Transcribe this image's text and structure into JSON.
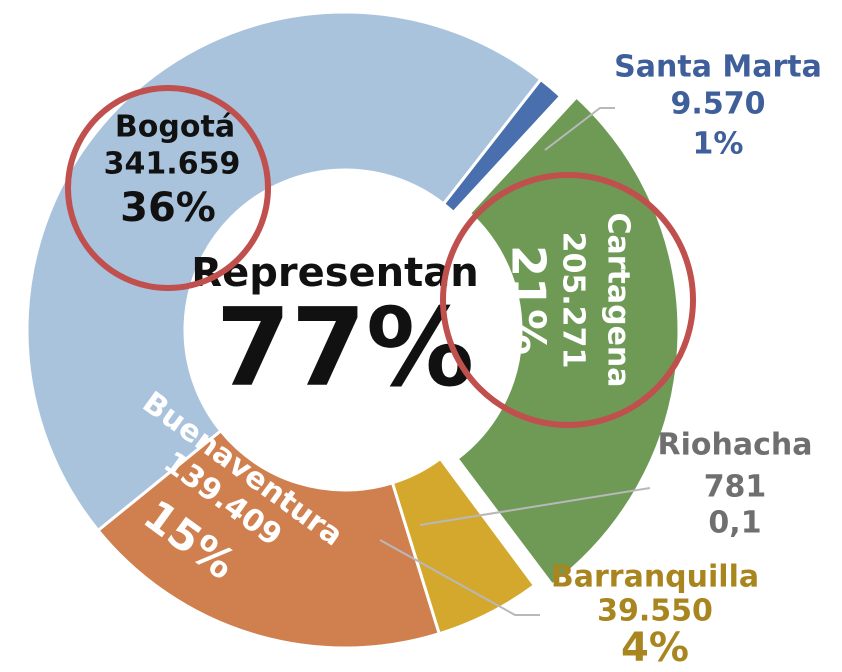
{
  "chart_data": {
    "type": "donut",
    "center_label": "Representan",
    "center_value": 77,
    "center_value_label": "77%",
    "categories": [
      "Santa Marta",
      "Cartagena",
      "Riohacha",
      "Barranquilla",
      "Buenaventura",
      "Bogotá"
    ],
    "values": [
      9570,
      205271,
      781,
      39550,
      139409,
      341659
    ],
    "value_labels": [
      "9.570",
      "205.271",
      "781",
      "39.550",
      "139.409",
      "341.659"
    ],
    "percents": [
      1,
      21,
      0.1,
      4,
      15,
      36
    ],
    "percent_labels": [
      "1%",
      "21%",
      "0,1",
      "4%",
      "15%",
      "36%"
    ],
    "colors": [
      "#4a6fae",
      "#6e9a55",
      "#9aa3a8",
      "#d4a82c",
      "#d0804e",
      "#a9c3dd"
    ]
  }
}
